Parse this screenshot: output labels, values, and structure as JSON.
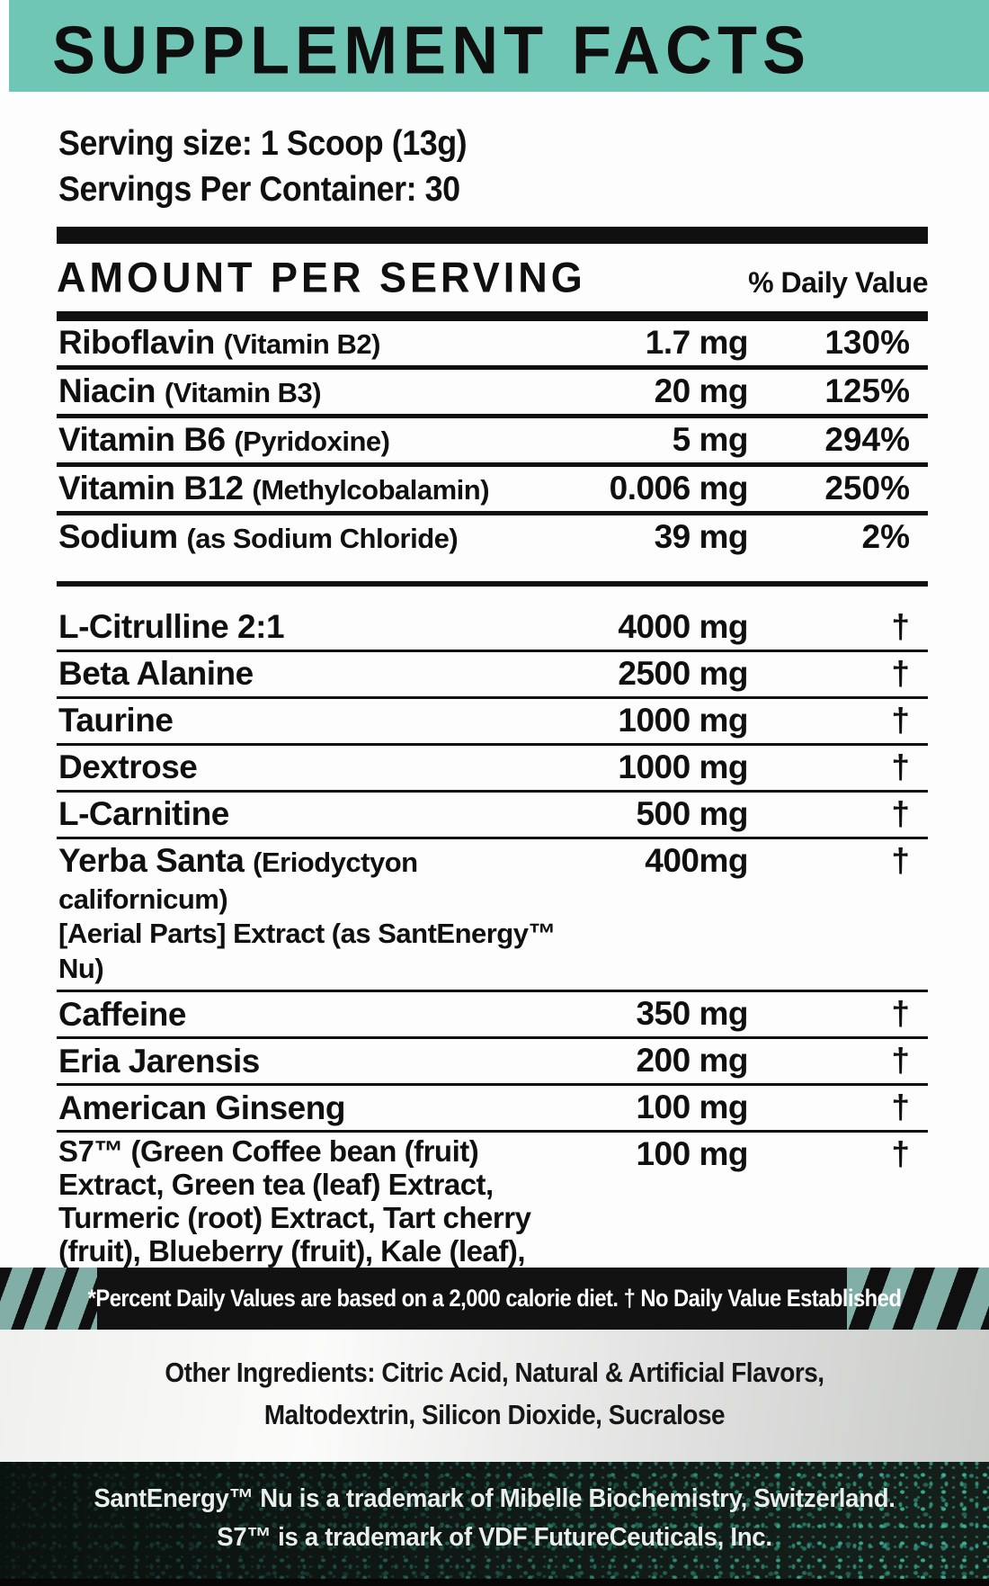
{
  "label": {
    "title": "SUPPLEMENT FACTS",
    "serving_size": "Serving size: 1 Scoop (13g)",
    "servings_per_container": "Servings Per Container: 30"
  },
  "table": {
    "header": {
      "amount": "AMOUNT PER SERVING",
      "daily_value": "% Daily Value"
    },
    "rows": [
      {
        "name": "Riboflavin",
        "sub": "(Vitamin B2)",
        "amount": "1.7 mg",
        "dv": "130%"
      },
      {
        "name": "Niacin",
        "sub": "(Vitamin B3)",
        "amount": "20 mg",
        "dv": "125%"
      },
      {
        "name": "Vitamin B6",
        "sub": "(Pyridoxine)",
        "amount": "5 mg",
        "dv": "294%"
      },
      {
        "name": "Vitamin B12",
        "sub": "(Methylcobalamin)",
        "amount": "0.006 mg",
        "dv": "250%"
      },
      {
        "name": "Sodium",
        "sub": "(as Sodium Chloride)",
        "amount": "39 mg",
        "dv": "2%"
      },
      {
        "name": "L-Citrulline 2:1",
        "amount": "4000 mg",
        "dv": "†"
      },
      {
        "name": "Beta Alanine",
        "amount": "2500 mg",
        "dv": "†"
      },
      {
        "name": "Taurine",
        "amount": "1000 mg",
        "dv": "†"
      },
      {
        "name": "Dextrose",
        "amount": "1000 mg",
        "dv": "†"
      },
      {
        "name": "L-Carnitine",
        "amount": "500 mg",
        "dv": "†"
      },
      {
        "name": "Yerba Santa",
        "sub": "(Eriodyctyon californicum)",
        "line2": "[Aerial Parts] Extract (as SantEnergy™ Nu)",
        "amount": "400mg",
        "dv": "†"
      },
      {
        "name": "Caffeine",
        "amount": "350 mg",
        "dv": "†"
      },
      {
        "name": "Eria Jarensis",
        "amount": "200 mg",
        "dv": "†"
      },
      {
        "name": "American Ginseng",
        "amount": "100 mg",
        "dv": "†"
      },
      {
        "name": "S7™",
        "sub": "(Green Coffee bean (fruit) Extract, Green tea (leaf) Extract, Turmeric (root) Extract, Tart cherry (fruit), Blueberry (fruit), Kale (leaf), Broccoli (whole plant plant))",
        "amount": "100 mg",
        "dv": "†"
      }
    ]
  },
  "footnote": "*Percent Daily Values are based on a 2,000 calorie diet. † No Daily Value Established",
  "other_ingredients": {
    "line1": "Other Ingredients: Citric Acid, Natural & Artificial Flavors,",
    "line2": "Maltodextrin, Silicon Dioxide, Sucralose"
  },
  "trademarks": {
    "line1": "SantEnergy™ Nu is a trademark of Mibelle Biochemistry, Switzerland.",
    "line2": "S7™ is a trademark of VDF FutureCeuticals, Inc."
  },
  "colors": {
    "header_teal": "#6fc6b4",
    "stripe_teal": "#82aea8",
    "rule_black": "#101010",
    "dark_band_green": "#15201b",
    "speckle_teal": "#3ec2a6"
  }
}
